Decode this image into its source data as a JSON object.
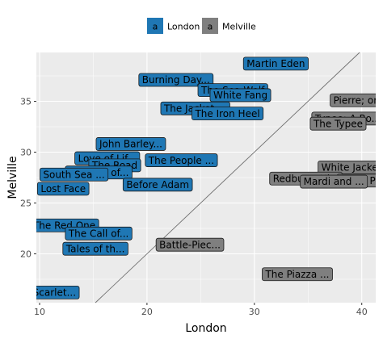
{
  "chart_data": {
    "type": "scatter",
    "xlabel": "London",
    "ylabel": "Melville",
    "xlim": [
      9.7,
      41.3
    ],
    "ylim": [
      15.2,
      39.8
    ],
    "x_ticks": [
      10,
      20,
      30,
      40
    ],
    "y_ticks": [
      20,
      25,
      30,
      35
    ],
    "grid": true,
    "legend_position": "top",
    "legend_key_glyph": "a",
    "reference_line": "y = x",
    "colors": {
      "London": "#1f77b4",
      "Melville": "#7f7f7f"
    },
    "series": [
      {
        "name": "London",
        "points": [
          {
            "label": "Martin Eden",
            "x": 32.0,
            "y": 38.7
          },
          {
            "label": "Burning Day...",
            "x": 22.7,
            "y": 37.1
          },
          {
            "label": "The Sea-Wolf",
            "x": 28.0,
            "y": 36.1
          },
          {
            "label": "White Fang",
            "x": 28.7,
            "y": 35.6
          },
          {
            "label": "The Jacket ...",
            "x": 24.5,
            "y": 34.3
          },
          {
            "label": "The Iron Heel",
            "x": 27.5,
            "y": 33.8
          },
          {
            "label": "John Barley...",
            "x": 18.5,
            "y": 30.8
          },
          {
            "label": "Love of Lif...",
            "x": 16.3,
            "y": 29.4
          },
          {
            "label": "The People ...",
            "x": 23.2,
            "y": 29.2
          },
          {
            "label": "The Road",
            "x": 17.0,
            "y": 28.7
          },
          {
            "label": "The Son of...",
            "x": 15.5,
            "y": 28.0
          },
          {
            "label": "South Sea ...",
            "x": 13.2,
            "y": 27.8
          },
          {
            "label": "Before Adam",
            "x": 21.0,
            "y": 26.8
          },
          {
            "label": "Lost Face",
            "x": 12.2,
            "y": 26.4
          },
          {
            "label": "The Red One",
            "x": 12.3,
            "y": 22.8
          },
          {
            "label": "The Call of...",
            "x": 15.5,
            "y": 22.0
          },
          {
            "label": "Tales of th...",
            "x": 15.2,
            "y": 20.5
          },
          {
            "label": "The Scarlet...",
            "x": 10.4,
            "y": 16.2
          }
        ]
      },
      {
        "name": "Melville",
        "points": [
          {
            "label": "Pierre; or...",
            "x": 39.8,
            "y": 35.1
          },
          {
            "label": "Typee: A Ro...",
            "x": 38.7,
            "y": 33.3
          },
          {
            "label": "The Typee",
            "x": 37.8,
            "y": 32.8
          },
          {
            "label": "White Jacke...",
            "x": 39.3,
            "y": 28.5
          },
          {
            "label": "Redburn. Hi...",
            "x": 34.8,
            "y": 27.4
          },
          {
            "label": "Israel Pot...",
            "x": 40.5,
            "y": 27.2
          },
          {
            "label": "Mardi and ...",
            "x": 37.4,
            "y": 27.1
          },
          {
            "label": "Battle-Piec...",
            "x": 24.0,
            "y": 20.9
          },
          {
            "label": "The Piazza ...",
            "x": 34.0,
            "y": 18.0
          }
        ]
      }
    ]
  }
}
